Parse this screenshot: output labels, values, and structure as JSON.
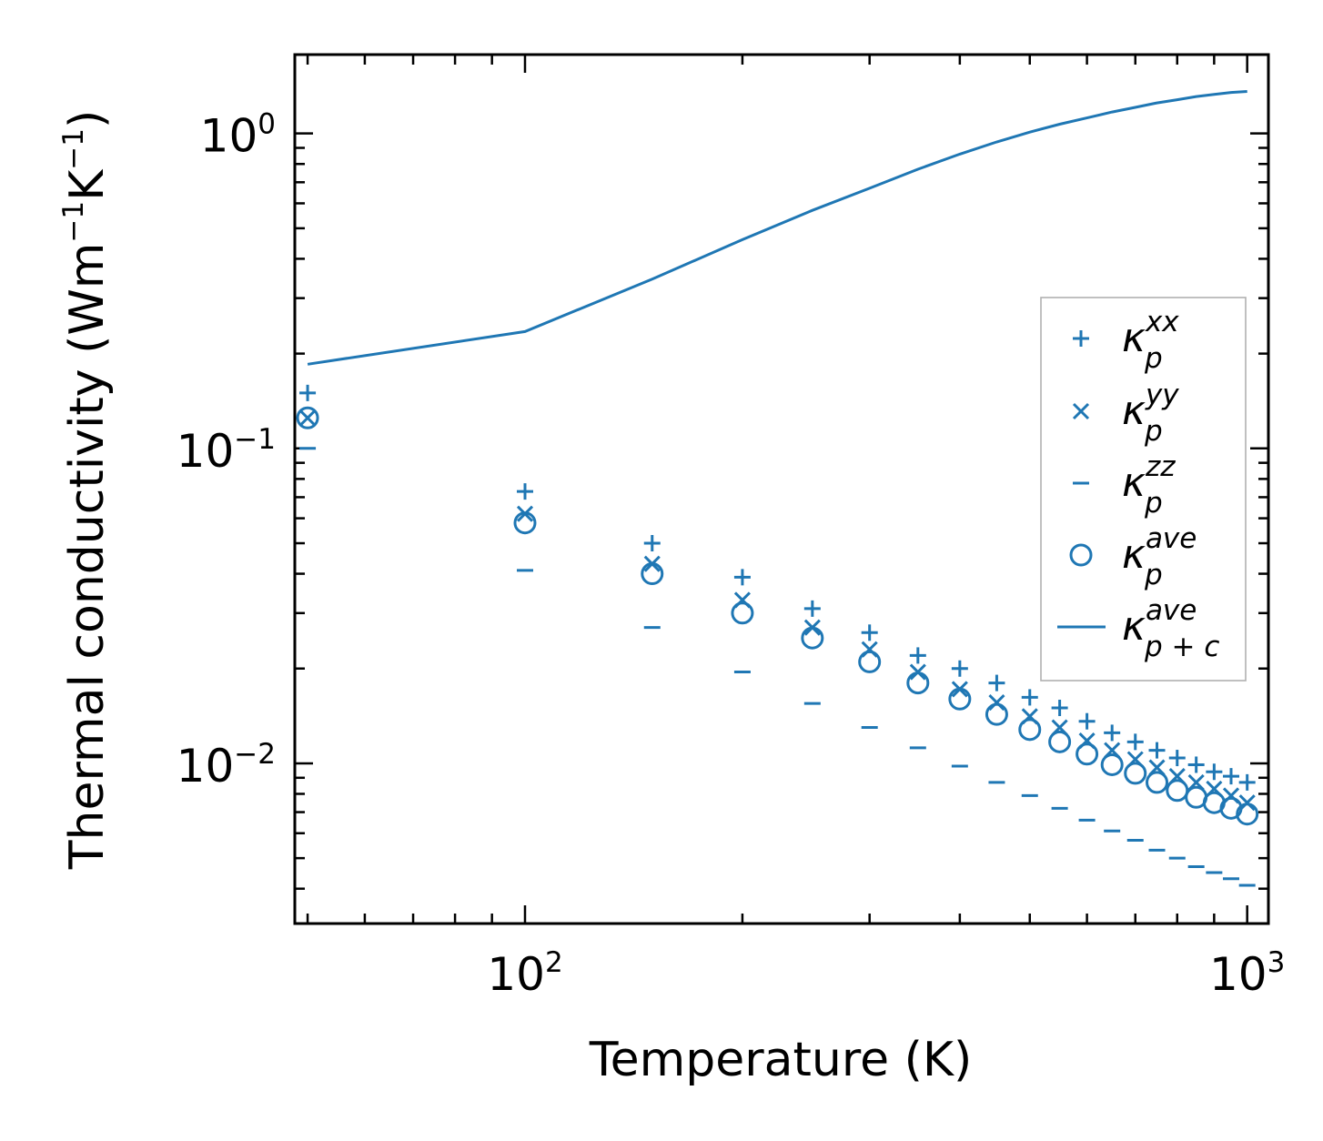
{
  "chart_data": {
    "type": "scatter",
    "xscale": "log",
    "yscale": "log",
    "xlabel": "Temperature (K)",
    "ylabel": "Thermal conductivity (Wm",
    "ylabel_unit_parts": [
      "−1",
      "K",
      "−1",
      ")"
    ],
    "xlim": [
      48,
      1070
    ],
    "ylim": [
      0.0031,
      1.78
    ],
    "x_ticks": [
      {
        "value": 100,
        "base": "10",
        "exp": "2"
      },
      {
        "value": 1000,
        "base": "10",
        "exp": "3"
      }
    ],
    "y_ticks": [
      {
        "value": 1,
        "base": "10",
        "exp": "0"
      },
      {
        "value": 0.1,
        "base": "10",
        "exp": "−1"
      },
      {
        "value": 0.01,
        "base": "10",
        "exp": "−2"
      }
    ],
    "x": [
      50,
      100,
      150,
      200,
      250,
      300,
      350,
      400,
      450,
      500,
      550,
      600,
      650,
      700,
      750,
      800,
      850,
      900,
      950,
      1000
    ],
    "series": [
      {
        "name": "kxx",
        "marker": "+",
        "symbol": "κ",
        "sub": "p",
        "sup": "xx",
        "values": [
          0.15,
          0.073,
          0.05,
          0.039,
          0.031,
          0.026,
          0.022,
          0.02,
          0.018,
          0.0162,
          0.015,
          0.0136,
          0.0125,
          0.0117,
          0.011,
          0.0104,
          0.0099,
          0.0094,
          0.0091,
          0.0087
        ]
      },
      {
        "name": "kyy",
        "marker": "x",
        "symbol": "κ",
        "sub": "p",
        "sup": "yy",
        "values": [
          0.125,
          0.062,
          0.043,
          0.033,
          0.027,
          0.023,
          0.0195,
          0.0172,
          0.0156,
          0.0141,
          0.013,
          0.0118,
          0.011,
          0.0103,
          0.0097,
          0.0091,
          0.0087,
          0.0083,
          0.0079,
          0.0075
        ]
      },
      {
        "name": "kzz",
        "marker": "_",
        "symbol": "κ",
        "sub": "p",
        "sup": "zz",
        "values": [
          0.1,
          0.041,
          0.027,
          0.0195,
          0.0155,
          0.013,
          0.0112,
          0.0098,
          0.0087,
          0.0079,
          0.0072,
          0.0066,
          0.0061,
          0.0057,
          0.0053,
          0.005,
          0.0047,
          0.0045,
          0.0043,
          0.0041
        ]
      },
      {
        "name": "kave",
        "marker": "o",
        "symbol": "κ",
        "sub": "p",
        "sup": "ave",
        "values": [
          0.125,
          0.058,
          0.04,
          0.03,
          0.025,
          0.021,
          0.018,
          0.016,
          0.0143,
          0.0128,
          0.0117,
          0.0107,
          0.0099,
          0.0093,
          0.0087,
          0.0082,
          0.0078,
          0.0075,
          0.0072,
          0.0069
        ]
      },
      {
        "name": "kave_pc",
        "marker": "line",
        "symbol": "κ",
        "sub": "p + c",
        "sup": "ave",
        "values": [
          0.185,
          0.235,
          0.345,
          0.46,
          0.57,
          0.67,
          0.77,
          0.86,
          0.94,
          1.01,
          1.07,
          1.12,
          1.17,
          1.21,
          1.25,
          1.28,
          1.31,
          1.33,
          1.35,
          1.36
        ]
      }
    ],
    "legend_position": "center-right",
    "grid": false,
    "color": "#1f77b4"
  }
}
